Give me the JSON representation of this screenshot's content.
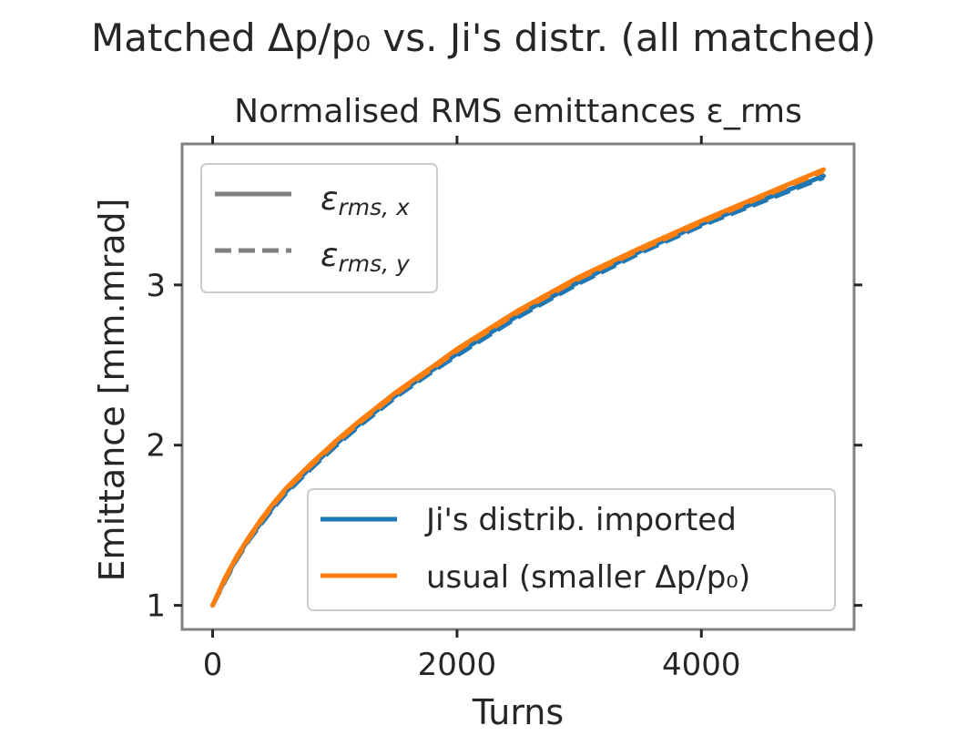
{
  "chart_data": {
    "type": "line",
    "suptitle": "Matched Δp/p₀ vs. Ji's distr. (all matched)",
    "title": "Normalised RMS emittances ε_rms",
    "xlabel": "Turns",
    "ylabel": "Emittance [mm.mrad]",
    "xlim": [
      -250,
      5250
    ],
    "ylim": [
      0.85,
      3.88
    ],
    "xticks": [
      0,
      2000,
      4000
    ],
    "yticks": [
      1,
      2,
      3
    ],
    "grid": false,
    "style_legend": {
      "placement": "top-left",
      "entries": [
        {
          "label": "ε_rms, x",
          "linestyle": "solid",
          "color": "#808080"
        },
        {
          "label": "ε_rms, y",
          "linestyle": "dashed",
          "color": "#808080"
        }
      ]
    },
    "series_legend": {
      "placement": "bottom-right"
    },
    "series": [
      {
        "name": "Ji's distrib. imported",
        "color": "#1f77b4",
        "x": [
          0,
          100,
          200,
          300,
          400,
          500,
          600,
          800,
          1000,
          1200,
          1500,
          1800,
          2000,
          2500,
          3000,
          3500,
          4000,
          4500,
          5000
        ],
        "y_x": [
          1.0,
          1.16,
          1.3,
          1.42,
          1.52,
          1.62,
          1.71,
          1.86,
          2.0,
          2.13,
          2.31,
          2.47,
          2.57,
          2.81,
          3.02,
          3.21,
          3.38,
          3.53,
          3.68
        ],
        "y_y": [
          1.0,
          1.15,
          1.29,
          1.41,
          1.51,
          1.61,
          1.7,
          1.85,
          1.99,
          2.12,
          2.3,
          2.46,
          2.56,
          2.8,
          3.01,
          3.2,
          3.37,
          3.52,
          3.67
        ]
      },
      {
        "name": "usual (smaller Δp/p₀)",
        "color": "#ff7f0e",
        "x": [
          0,
          100,
          200,
          300,
          400,
          500,
          600,
          800,
          1000,
          1200,
          1500,
          1800,
          2000,
          2500,
          3000,
          3500,
          4000,
          4500,
          5000
        ],
        "y_x": [
          1.0,
          1.17,
          1.31,
          1.43,
          1.54,
          1.64,
          1.73,
          1.88,
          2.02,
          2.15,
          2.33,
          2.49,
          2.6,
          2.84,
          3.05,
          3.23,
          3.4,
          3.56,
          3.72
        ],
        "y_y": [
          1.0,
          1.16,
          1.3,
          1.42,
          1.53,
          1.63,
          1.72,
          1.87,
          2.01,
          2.14,
          2.32,
          2.48,
          2.59,
          2.83,
          3.04,
          3.22,
          3.39,
          3.55,
          3.71
        ]
      }
    ]
  }
}
